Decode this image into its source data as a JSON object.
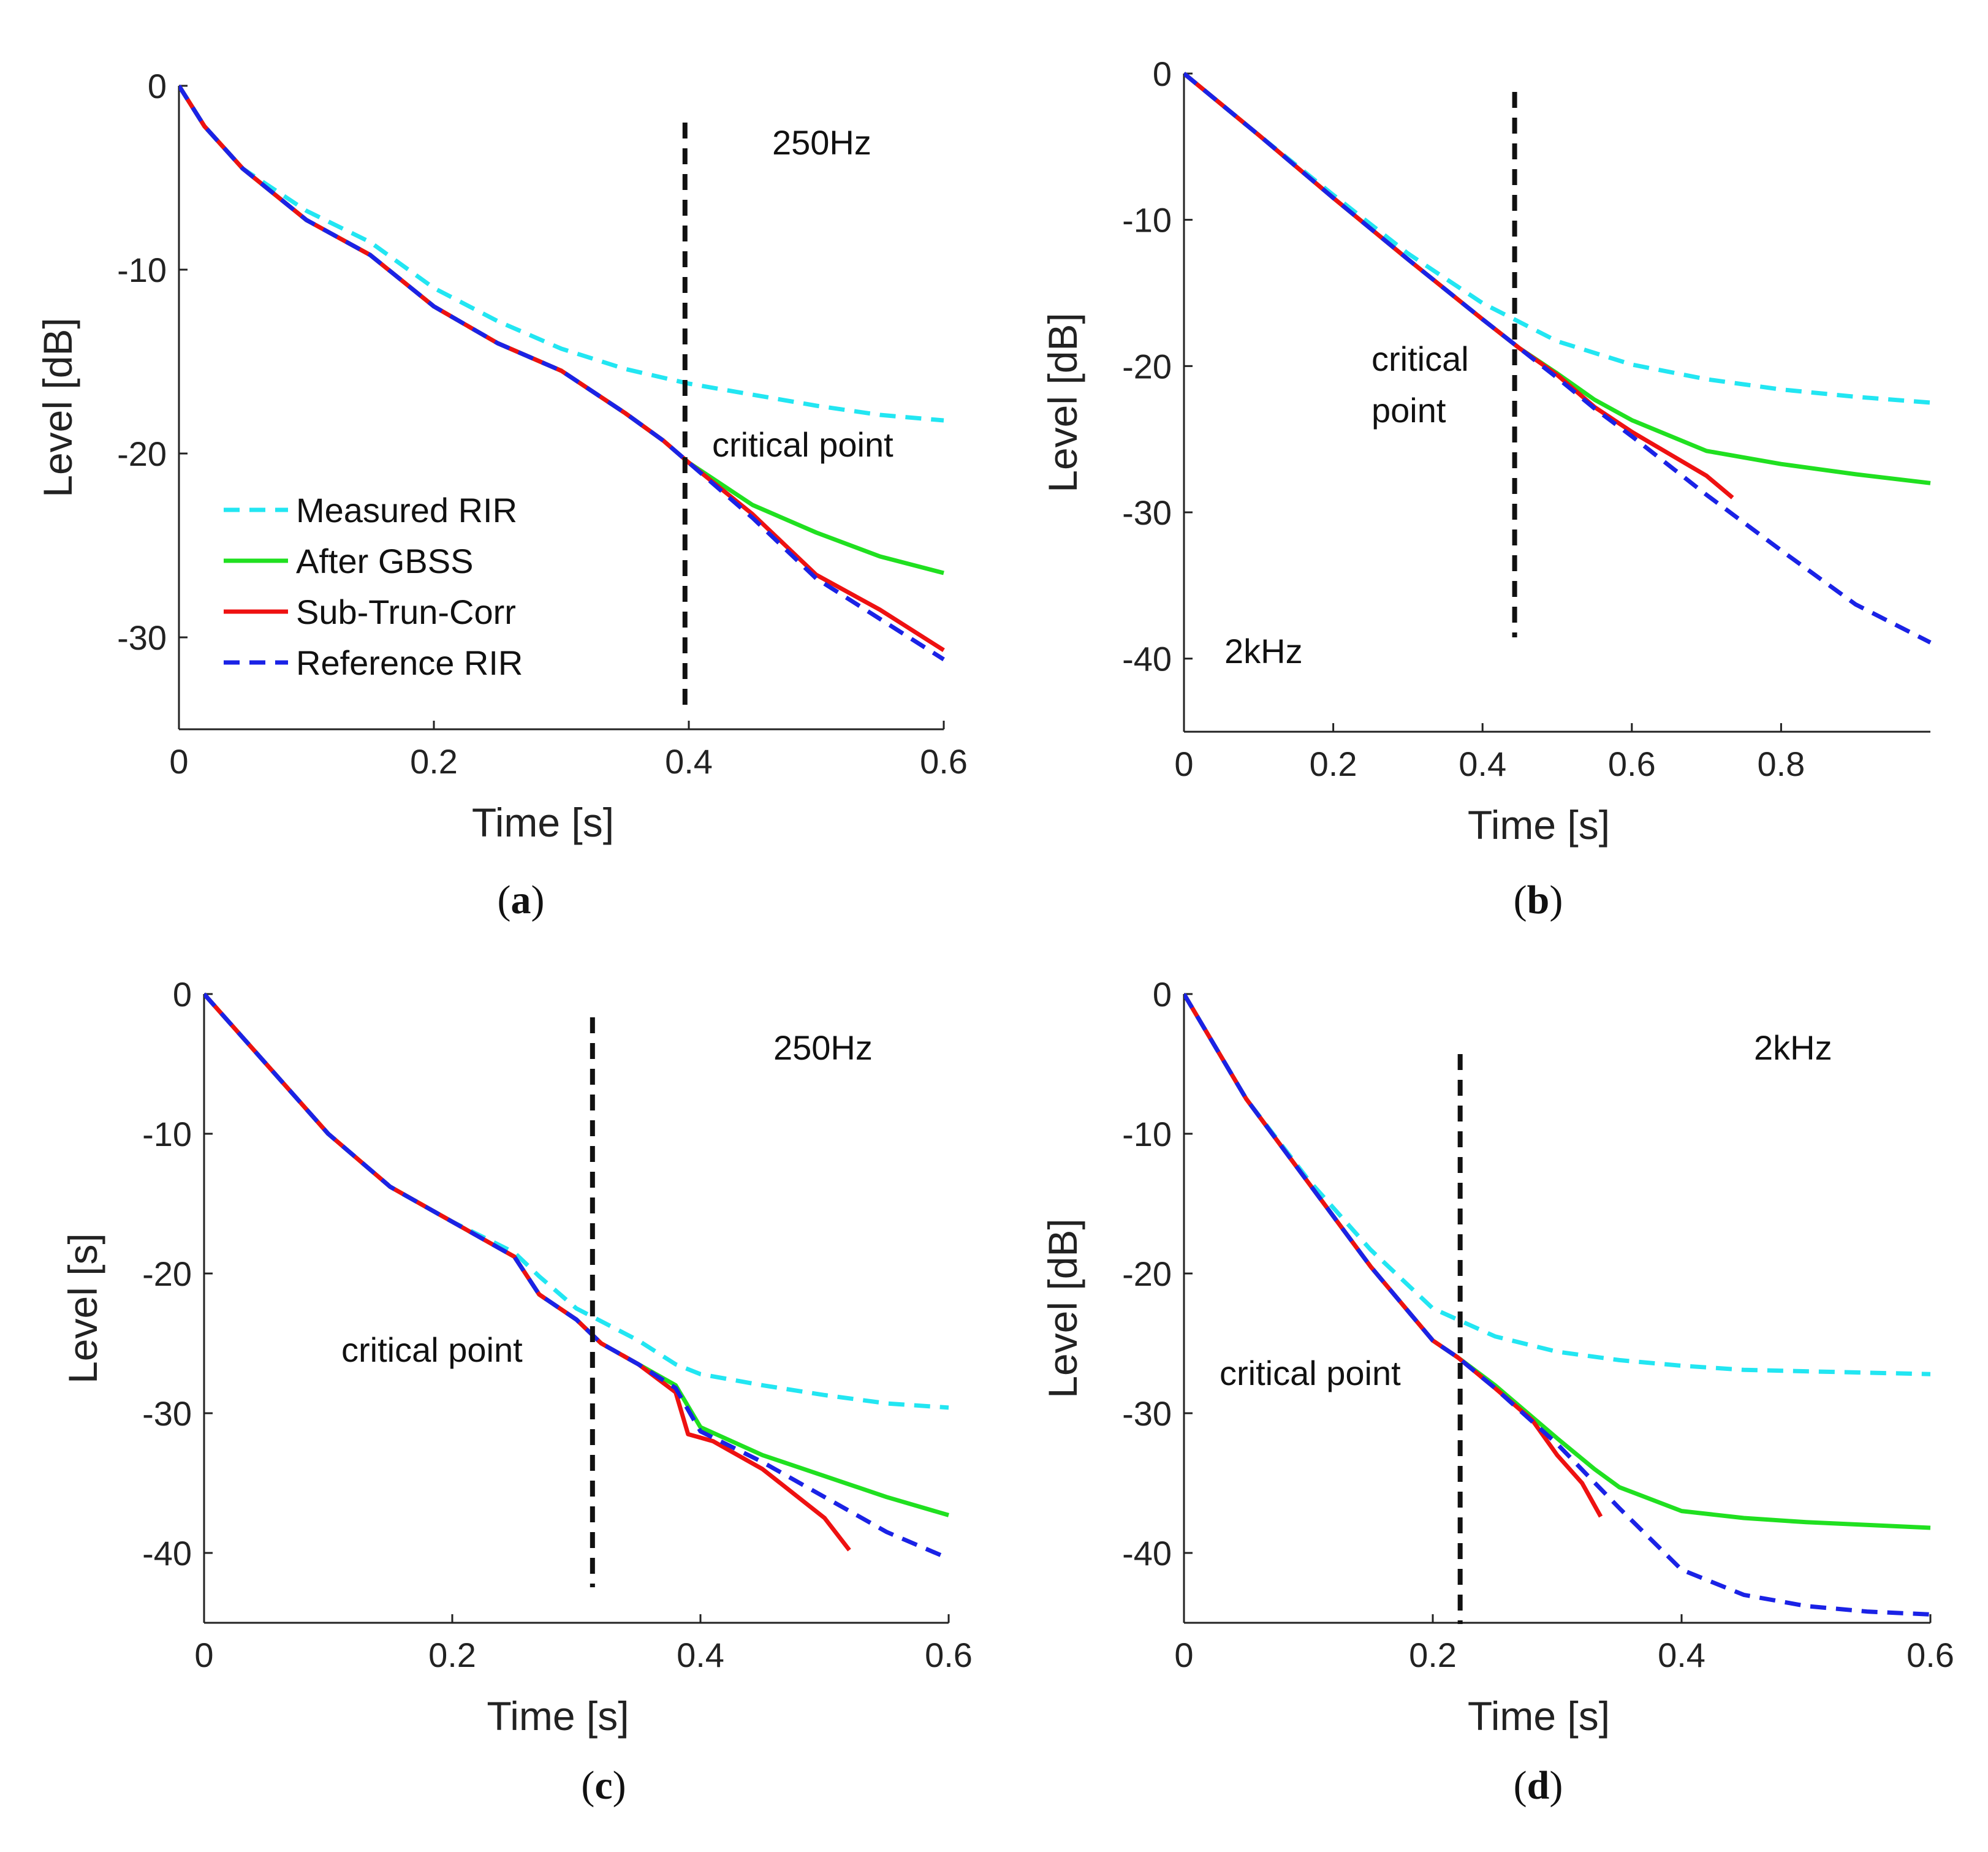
{
  "chart_data": [
    {
      "id": "a",
      "type": "line",
      "caption": "a",
      "band_label": "250Hz",
      "annotation": "critical point",
      "critical_x": 0.397,
      "xlabel": "Time [s]",
      "ylabel": "Level [dB]",
      "xlim": [
        0,
        0.6
      ],
      "ylim": [
        -35,
        0
      ],
      "xticks": [
        0,
        0.2,
        0.4,
        0.6
      ],
      "xtick_labels": [
        "0",
        "0.2",
        "0.4",
        "0.6"
      ],
      "yticks": [
        0,
        -10,
        -20,
        -30
      ],
      "ytick_labels": [
        "0",
        "-10",
        "-20",
        "-30"
      ],
      "series": [
        {
          "key": "measured",
          "name": "Measured RIR",
          "color": "#22e6f2",
          "dash": "dashed",
          "x": [
            0,
            0.02,
            0.05,
            0.1,
            0.15,
            0.2,
            0.25,
            0.3,
            0.35,
            0.4,
            0.45,
            0.5,
            0.55,
            0.6
          ],
          "y": [
            0,
            -2.2,
            -4.5,
            -6.8,
            -8.5,
            -11.0,
            -12.8,
            -14.3,
            -15.4,
            -16.2,
            -16.8,
            -17.4,
            -17.9,
            -18.2
          ]
        },
        {
          "key": "gbss",
          "name": "After GBSS",
          "color": "#20e020",
          "dash": "solid",
          "x": [
            0,
            0.02,
            0.05,
            0.1,
            0.15,
            0.2,
            0.25,
            0.3,
            0.35,
            0.38,
            0.4,
            0.45,
            0.5,
            0.55,
            0.6
          ],
          "y": [
            0,
            -2.2,
            -4.5,
            -7.3,
            -9.2,
            -12.0,
            -14.0,
            -15.5,
            -17.8,
            -19.3,
            -20.5,
            -22.8,
            -24.3,
            -25.6,
            -26.5
          ]
        },
        {
          "key": "subtrun",
          "name": "Sub-Trun-Corr",
          "color": "#ee1111",
          "dash": "solid",
          "x": [
            0,
            0.02,
            0.05,
            0.1,
            0.15,
            0.2,
            0.25,
            0.3,
            0.35,
            0.38,
            0.4,
            0.45,
            0.5,
            0.55,
            0.6
          ],
          "y": [
            0,
            -2.2,
            -4.5,
            -7.3,
            -9.2,
            -12.0,
            -14.0,
            -15.5,
            -17.8,
            -19.3,
            -20.5,
            -23.3,
            -26.6,
            -28.5,
            -30.7
          ]
        },
        {
          "key": "reference",
          "name": "Reference RIR",
          "color": "#1a22e6",
          "dash": "dashed",
          "x": [
            0,
            0.02,
            0.05,
            0.1,
            0.15,
            0.2,
            0.25,
            0.3,
            0.35,
            0.38,
            0.4,
            0.45,
            0.5,
            0.55,
            0.6
          ],
          "y": [
            0,
            -2.2,
            -4.5,
            -7.3,
            -9.2,
            -12.0,
            -14.0,
            -15.5,
            -17.8,
            -19.3,
            -20.5,
            -23.5,
            -26.8,
            -29.0,
            -31.2
          ]
        }
      ]
    },
    {
      "id": "b",
      "type": "line",
      "caption": "b",
      "band_label": "2kHz",
      "annotation": "critical\npoint",
      "critical_x": 0.443,
      "xlabel": "Time [s]",
      "ylabel": "Level [dB]",
      "xlim": [
        0,
        1.0
      ],
      "ylim": [
        -45,
        0
      ],
      "xticks": [
        0,
        0.2,
        0.4,
        0.6,
        0.8
      ],
      "xtick_labels": [
        "0",
        "0.2",
        "0.4",
        "0.6",
        "0.8"
      ],
      "yticks": [
        0,
        -10,
        -20,
        -30,
        -40
      ],
      "ytick_labels": [
        "0",
        "-10",
        "-20",
        "-30",
        "-40"
      ],
      "series": [
        {
          "key": "measured",
          "name": "Measured RIR",
          "color": "#22e6f2",
          "dash": "dashed",
          "x": [
            0,
            0.1,
            0.2,
            0.3,
            0.4,
            0.5,
            0.6,
            0.7,
            0.8,
            0.9,
            1.0
          ],
          "y": [
            0,
            -4.2,
            -8.3,
            -12.3,
            -15.7,
            -18.3,
            -19.9,
            -20.9,
            -21.6,
            -22.1,
            -22.5
          ]
        },
        {
          "key": "gbss",
          "name": "After GBSS",
          "color": "#20e020",
          "dash": "solid",
          "x": [
            0,
            0.1,
            0.2,
            0.3,
            0.4,
            0.45,
            0.5,
            0.55,
            0.6,
            0.7,
            0.8,
            0.9,
            1.0
          ],
          "y": [
            0,
            -4.2,
            -8.5,
            -12.7,
            -16.8,
            -18.8,
            -20.5,
            -22.3,
            -23.7,
            -25.8,
            -26.7,
            -27.4,
            -28.0
          ]
        },
        {
          "key": "subtrun",
          "name": "Sub-Trun-Corr",
          "color": "#ee1111",
          "dash": "solid",
          "x": [
            0,
            0.1,
            0.2,
            0.3,
            0.4,
            0.45,
            0.5,
            0.55,
            0.6,
            0.65,
            0.7,
            0.735
          ],
          "y": [
            0,
            -4.2,
            -8.5,
            -12.7,
            -16.8,
            -18.8,
            -20.6,
            -22.8,
            -24.5,
            -26.0,
            -27.5,
            -29.0
          ]
        },
        {
          "key": "reference",
          "name": "Reference RIR",
          "color": "#1a22e6",
          "dash": "dashed",
          "x": [
            0,
            0.1,
            0.2,
            0.3,
            0.4,
            0.45,
            0.5,
            0.55,
            0.6,
            0.7,
            0.8,
            0.9,
            1.0
          ],
          "y": [
            0,
            -4.2,
            -8.5,
            -12.7,
            -16.8,
            -18.8,
            -20.8,
            -22.9,
            -24.8,
            -28.8,
            -32.6,
            -36.3,
            -38.9
          ]
        }
      ]
    },
    {
      "id": "c",
      "type": "line",
      "caption": "c",
      "band_label": "250Hz",
      "annotation": "critical point",
      "critical_x": 0.313,
      "xlabel": "Time [s]",
      "ylabel": "Level [s]",
      "xlim": [
        0,
        0.6
      ],
      "ylim": [
        -45,
        0
      ],
      "xticks": [
        0,
        0.2,
        0.4,
        0.6
      ],
      "xtick_labels": [
        "0",
        "0.2",
        "0.4",
        "0.6"
      ],
      "yticks": [
        0,
        -10,
        -20,
        -30,
        -40
      ],
      "ytick_labels": [
        "0",
        "-10",
        "-20",
        "-30",
        "-40"
      ],
      "series": [
        {
          "key": "measured",
          "name": "Measured RIR",
          "color": "#22e6f2",
          "dash": "dashed",
          "x": [
            0,
            0.03,
            0.05,
            0.1,
            0.15,
            0.2,
            0.25,
            0.27,
            0.3,
            0.35,
            0.38,
            0.4,
            0.45,
            0.5,
            0.55,
            0.6
          ],
          "y": [
            0,
            -3.0,
            -5.0,
            -10.0,
            -13.8,
            -16.3,
            -18.5,
            -20.2,
            -22.5,
            -24.8,
            -26.5,
            -27.2,
            -28.0,
            -28.7,
            -29.3,
            -29.6
          ]
        },
        {
          "key": "gbss",
          "name": "After GBSS",
          "color": "#20e020",
          "dash": "solid",
          "x": [
            0,
            0.03,
            0.05,
            0.1,
            0.15,
            0.2,
            0.25,
            0.27,
            0.3,
            0.32,
            0.35,
            0.38,
            0.4,
            0.45,
            0.5,
            0.55,
            0.6
          ],
          "y": [
            0,
            -3.0,
            -5.0,
            -10.0,
            -13.8,
            -16.3,
            -18.8,
            -21.5,
            -23.3,
            -25.0,
            -26.5,
            -28.0,
            -31.0,
            -33.0,
            -34.5,
            -36.0,
            -37.3
          ]
        },
        {
          "key": "subtrun",
          "name": "Sub-Trun-Corr",
          "color": "#ee1111",
          "dash": "solid",
          "x": [
            0,
            0.03,
            0.05,
            0.1,
            0.15,
            0.2,
            0.25,
            0.27,
            0.3,
            0.32,
            0.35,
            0.38,
            0.39,
            0.41,
            0.45,
            0.5,
            0.52
          ],
          "y": [
            0,
            -3.0,
            -5.0,
            -10.0,
            -13.8,
            -16.3,
            -18.8,
            -21.5,
            -23.3,
            -25.0,
            -26.5,
            -28.5,
            -31.5,
            -32.0,
            -34.0,
            -37.5,
            -39.8
          ]
        },
        {
          "key": "reference",
          "name": "Reference RIR",
          "color": "#1a22e6",
          "dash": "dashed",
          "x": [
            0,
            0.03,
            0.05,
            0.1,
            0.15,
            0.2,
            0.25,
            0.27,
            0.3,
            0.32,
            0.35,
            0.38,
            0.4,
            0.45,
            0.5,
            0.55,
            0.6
          ],
          "y": [
            0,
            -3.0,
            -5.0,
            -10.0,
            -13.8,
            -16.3,
            -18.8,
            -21.5,
            -23.3,
            -25.0,
            -26.5,
            -28.2,
            -31.3,
            -33.5,
            -36.0,
            -38.5,
            -40.4
          ]
        }
      ]
    },
    {
      "id": "d",
      "type": "line",
      "caption": "d",
      "band_label": "2kHz",
      "annotation": "critical point",
      "critical_x": 0.222,
      "xlabel": "Time [s]",
      "ylabel": "Level [dB]",
      "xlim": [
        0,
        0.6
      ],
      "ylim": [
        -45,
        0
      ],
      "xticks": [
        0,
        0.2,
        0.4,
        0.6
      ],
      "xtick_labels": [
        "0",
        "0.2",
        "0.4",
        "0.6"
      ],
      "yticks": [
        0,
        -10,
        -20,
        -30,
        -40
      ],
      "ytick_labels": [
        "0",
        "-10",
        "-20",
        "-30",
        "-40"
      ],
      "series": [
        {
          "key": "measured",
          "name": "Measured RIR",
          "color": "#22e6f2",
          "dash": "dashed",
          "x": [
            0,
            0.05,
            0.1,
            0.15,
            0.2,
            0.25,
            0.3,
            0.35,
            0.4,
            0.45,
            0.5,
            0.55,
            0.6
          ],
          "y": [
            0,
            -7.5,
            -13.3,
            -18.3,
            -22.5,
            -24.5,
            -25.6,
            -26.2,
            -26.6,
            -26.9,
            -27.0,
            -27.1,
            -27.2
          ]
        },
        {
          "key": "gbss",
          "name": "After GBSS",
          "color": "#20e020",
          "dash": "solid",
          "x": [
            0,
            0.05,
            0.1,
            0.15,
            0.2,
            0.22,
            0.25,
            0.3,
            0.33,
            0.35,
            0.4,
            0.45,
            0.5,
            0.55,
            0.6
          ],
          "y": [
            0,
            -7.5,
            -13.5,
            -19.5,
            -24.8,
            -26.0,
            -28.0,
            -31.8,
            -34.0,
            -35.3,
            -37.0,
            -37.5,
            -37.8,
            -38.0,
            -38.2
          ]
        },
        {
          "key": "subtrun",
          "name": "Sub-Trun-Corr",
          "color": "#ee1111",
          "dash": "solid",
          "x": [
            0,
            0.05,
            0.1,
            0.15,
            0.2,
            0.22,
            0.25,
            0.28,
            0.3,
            0.32,
            0.335
          ],
          "y": [
            0,
            -7.5,
            -13.5,
            -19.5,
            -24.8,
            -26.0,
            -28.2,
            -30.5,
            -33.0,
            -35.0,
            -37.4
          ]
        },
        {
          "key": "reference",
          "name": "Reference RIR",
          "color": "#1a22e6",
          "dash": "dashed",
          "x": [
            0,
            0.05,
            0.1,
            0.15,
            0.2,
            0.22,
            0.25,
            0.3,
            0.35,
            0.4,
            0.45,
            0.5,
            0.55,
            0.6
          ],
          "y": [
            0,
            -7.5,
            -13.5,
            -19.5,
            -24.8,
            -26.0,
            -28.2,
            -32.2,
            -36.8,
            -41.2,
            -43.0,
            -43.8,
            -44.2,
            -44.4
          ]
        }
      ]
    }
  ],
  "legend": {
    "items": [
      "Measured RIR",
      "After GBSS",
      "Sub-Trun-Corr",
      "Reference RIR"
    ]
  }
}
